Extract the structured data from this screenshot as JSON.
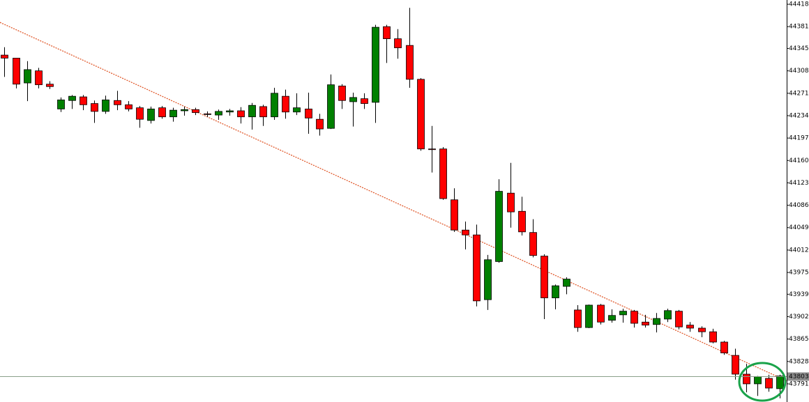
{
  "chart_data": {
    "type": "candlestick",
    "up_color": "#008000",
    "down_color": "#ff0000",
    "ylim": [
      43761,
      44425
    ],
    "yticks": [
      {
        "value": 44418,
        "label": "44418."
      },
      {
        "value": 44381,
        "label": "44381."
      },
      {
        "value": 44345,
        "label": "44345."
      },
      {
        "value": 44308,
        "label": "44308."
      },
      {
        "value": 44271,
        "label": "44271."
      },
      {
        "value": 44234,
        "label": "44234."
      },
      {
        "value": 44197,
        "label": "44197."
      },
      {
        "value": 44160,
        "label": "44160."
      },
      {
        "value": 44123,
        "label": "44123."
      },
      {
        "value": 44086,
        "label": "44086."
      },
      {
        "value": 44049,
        "label": "44049."
      },
      {
        "value": 44012,
        "label": "44012."
      },
      {
        "value": 43975,
        "label": "43975."
      },
      {
        "value": 43939,
        "label": "43939."
      },
      {
        "value": 43902,
        "label": "43902."
      },
      {
        "value": 43865,
        "label": "43865."
      },
      {
        "value": 43828,
        "label": "43828."
      },
      {
        "value": 43791,
        "label": "43791."
      }
    ],
    "last_price": 43803,
    "trendline": {
      "values": [
        44388,
        43796
      ],
      "color": "#e0582a"
    },
    "open": [
      44334,
      44329,
      44288,
      44308,
      44286,
      44245,
      44259,
      44265,
      44254,
      44241,
      44259,
      44252,
      44247,
      44226,
      44247,
      44232,
      44242,
      44244,
      44237,
      44235,
      44240,
      44242,
      44232,
      44249,
      44232,
      44266,
      44240,
      44245,
      44228,
      44213,
      44283,
      44257,
      44262,
      44256,
      44381,
      44361,
      44350,
      44294,
      44179,
      44179,
      44095,
      44045,
      44037,
      43930,
      43993,
      44106,
      44076,
      44041,
      44002,
      43933,
      43952,
      43913,
      43884,
      43921,
      43896,
      43905,
      43911,
      43893,
      43889,
      43898,
      43911,
      43888,
      43883,
      43877,
      43860,
      43838,
      43807,
      43791,
      43800,
      43783
    ],
    "high": [
      44347,
      44329,
      44324,
      44313,
      44291,
      44264,
      44268,
      44268,
      44259,
      44267,
      44275,
      44258,
      44250,
      44249,
      44250,
      44247,
      44249,
      44247,
      44241,
      44244,
      44245,
      44248,
      44255,
      44252,
      44280,
      44277,
      44271,
      44272,
      44237,
      44302,
      44286,
      44272,
      44271,
      44384,
      44384,
      44377,
      44412,
      44296,
      44217,
      44182,
      44114,
      44059,
      44054,
      44004,
      44129,
      44156,
      44100,
      44063,
      44005,
      43955,
      43967,
      43921,
      43922,
      43923,
      43914,
      43915,
      43913,
      43905,
      43908,
      43915,
      43913,
      43893,
      43886,
      43882,
      43862,
      43849,
      43824,
      43804,
      43806,
      43806
    ],
    "low": [
      44298,
      44279,
      44258,
      44279,
      44278,
      44240,
      44245,
      44243,
      44222,
      44237,
      44243,
      44241,
      44214,
      44221,
      44229,
      44224,
      44234,
      44235,
      44232,
      44227,
      44234,
      44221,
      44211,
      44217,
      44227,
      44229,
      44235,
      44204,
      44201,
      44212,
      44245,
      44216,
      44245,
      44222,
      44321,
      44328,
      44280,
      44176,
      44140,
      44095,
      44042,
      44013,
      43919,
      43913,
      43991,
      44049,
      44036,
      44000,
      43898,
      43914,
      43939,
      43877,
      43883,
      43889,
      43892,
      43892,
      43884,
      43884,
      43876,
      43893,
      43881,
      43877,
      43868,
      43858,
      43839,
      43798,
      43777,
      43771,
      43778,
      43767
    ],
    "close": [
      44329,
      44286,
      44310,
      44285,
      44282,
      44260,
      44266,
      44252,
      44241,
      44260,
      44252,
      44245,
      44228,
      44245,
      44232,
      44243,
      44244,
      44239,
      44236,
      44241,
      44242,
      44232,
      44251,
      44232,
      44271,
      44240,
      44247,
      44230,
      44212,
      44285,
      44259,
      44264,
      44254,
      44380,
      44361,
      44346,
      44294,
      44179,
      44178,
      44097,
      44045,
      44037,
      43928,
      43996,
      44109,
      44075,
      44042,
      44003,
      43933,
      43953,
      43964,
      43884,
      43921,
      43893,
      43904,
      43911,
      43891,
      43888,
      43899,
      43912,
      43885,
      43883,
      43877,
      43860,
      43842,
      43807,
      43791,
      43803,
      43784,
      43804
    ]
  }
}
